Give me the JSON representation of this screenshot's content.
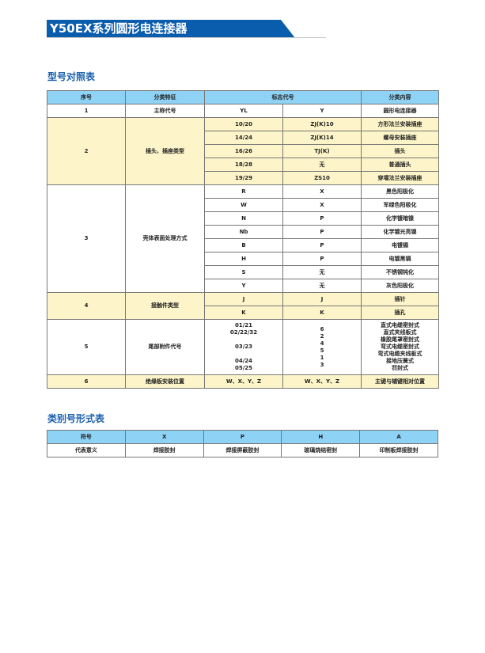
{
  "title": "Y50EX系列圆形电连接器",
  "section1": {
    "heading": "型号对照表",
    "headers": [
      "序号",
      "分类特征",
      "标志代号",
      "分类内容"
    ],
    "groups": [
      {
        "no": "1",
        "feature": "主称代号",
        "highlight": false,
        "rows": [
          [
            "YL",
            "Y",
            "圆形电连接器"
          ]
        ]
      },
      {
        "no": "2",
        "feature": "插头、插座类型",
        "highlight": true,
        "rows": [
          [
            "10/20",
            "ZJ(K)10",
            "方形法兰安装插座"
          ],
          [
            "14/24",
            "ZJ(K)14",
            "螺母安装插座"
          ],
          [
            "16/26",
            "TJ(K)",
            "插头"
          ],
          [
            "18/28",
            "无",
            "普通插头"
          ],
          [
            "19/29",
            "ZS10",
            "穿墙法兰安装插座"
          ]
        ]
      },
      {
        "no": "3",
        "feature": "壳体表面处理方式",
        "highlight": false,
        "rows": [
          [
            "R",
            "X",
            "黑色阳极化"
          ],
          [
            "W",
            "X",
            "军绿色阳极化"
          ],
          [
            "N",
            "P",
            "化学镀暗镍"
          ],
          [
            "Nb",
            "P",
            "化学镀光亮镍"
          ],
          [
            "B",
            "P",
            "电镀镉"
          ],
          [
            "H",
            "P",
            "电镀黑镉"
          ],
          [
            "S",
            "无",
            "不锈钢钝化"
          ],
          [
            "Y",
            "无",
            "灰色阳极化"
          ]
        ]
      },
      {
        "no": "4",
        "feature": "接触件类型",
        "highlight": true,
        "rows": [
          [
            "J",
            "J",
            "插针"
          ],
          [
            "K",
            "K",
            "插孔"
          ]
        ]
      },
      {
        "no": "5",
        "feature": "尾部附件代号",
        "highlight": false,
        "multiline": true,
        "rows": [
          [
            "01/21\n02/22/32\n\n03/23\n\n04/24\n05/25",
            "6\n2\n4\n5\n1\n3",
            "直式电缆密封式\n直式夹线板式\n橡胶尾罩密封式\n弯式电缆密封式\n弯式电缆夹线板式\n接地压簧式\n罚封式"
          ]
        ]
      },
      {
        "no": "6",
        "feature": "绝缘板安装位置",
        "highlight": true,
        "rows": [
          [
            "W、X、Y、Z",
            "W、X、Y、Z",
            "主键与辅键相对位置"
          ]
        ]
      }
    ]
  },
  "section2": {
    "heading": "类别号形式表",
    "headers": [
      "符号",
      "X",
      "P",
      "H",
      "A"
    ],
    "row": [
      "代表意义",
      "焊接胶封",
      "焊接屏蔽胶封",
      "玻璃烧结密封",
      "印制板焊接胶封"
    ]
  },
  "colors": {
    "banner": "#0a5cad",
    "header_bg": "#8ed2f5",
    "highlight_bg": "#fdf5c9",
    "heading": "#1a5fad"
  }
}
